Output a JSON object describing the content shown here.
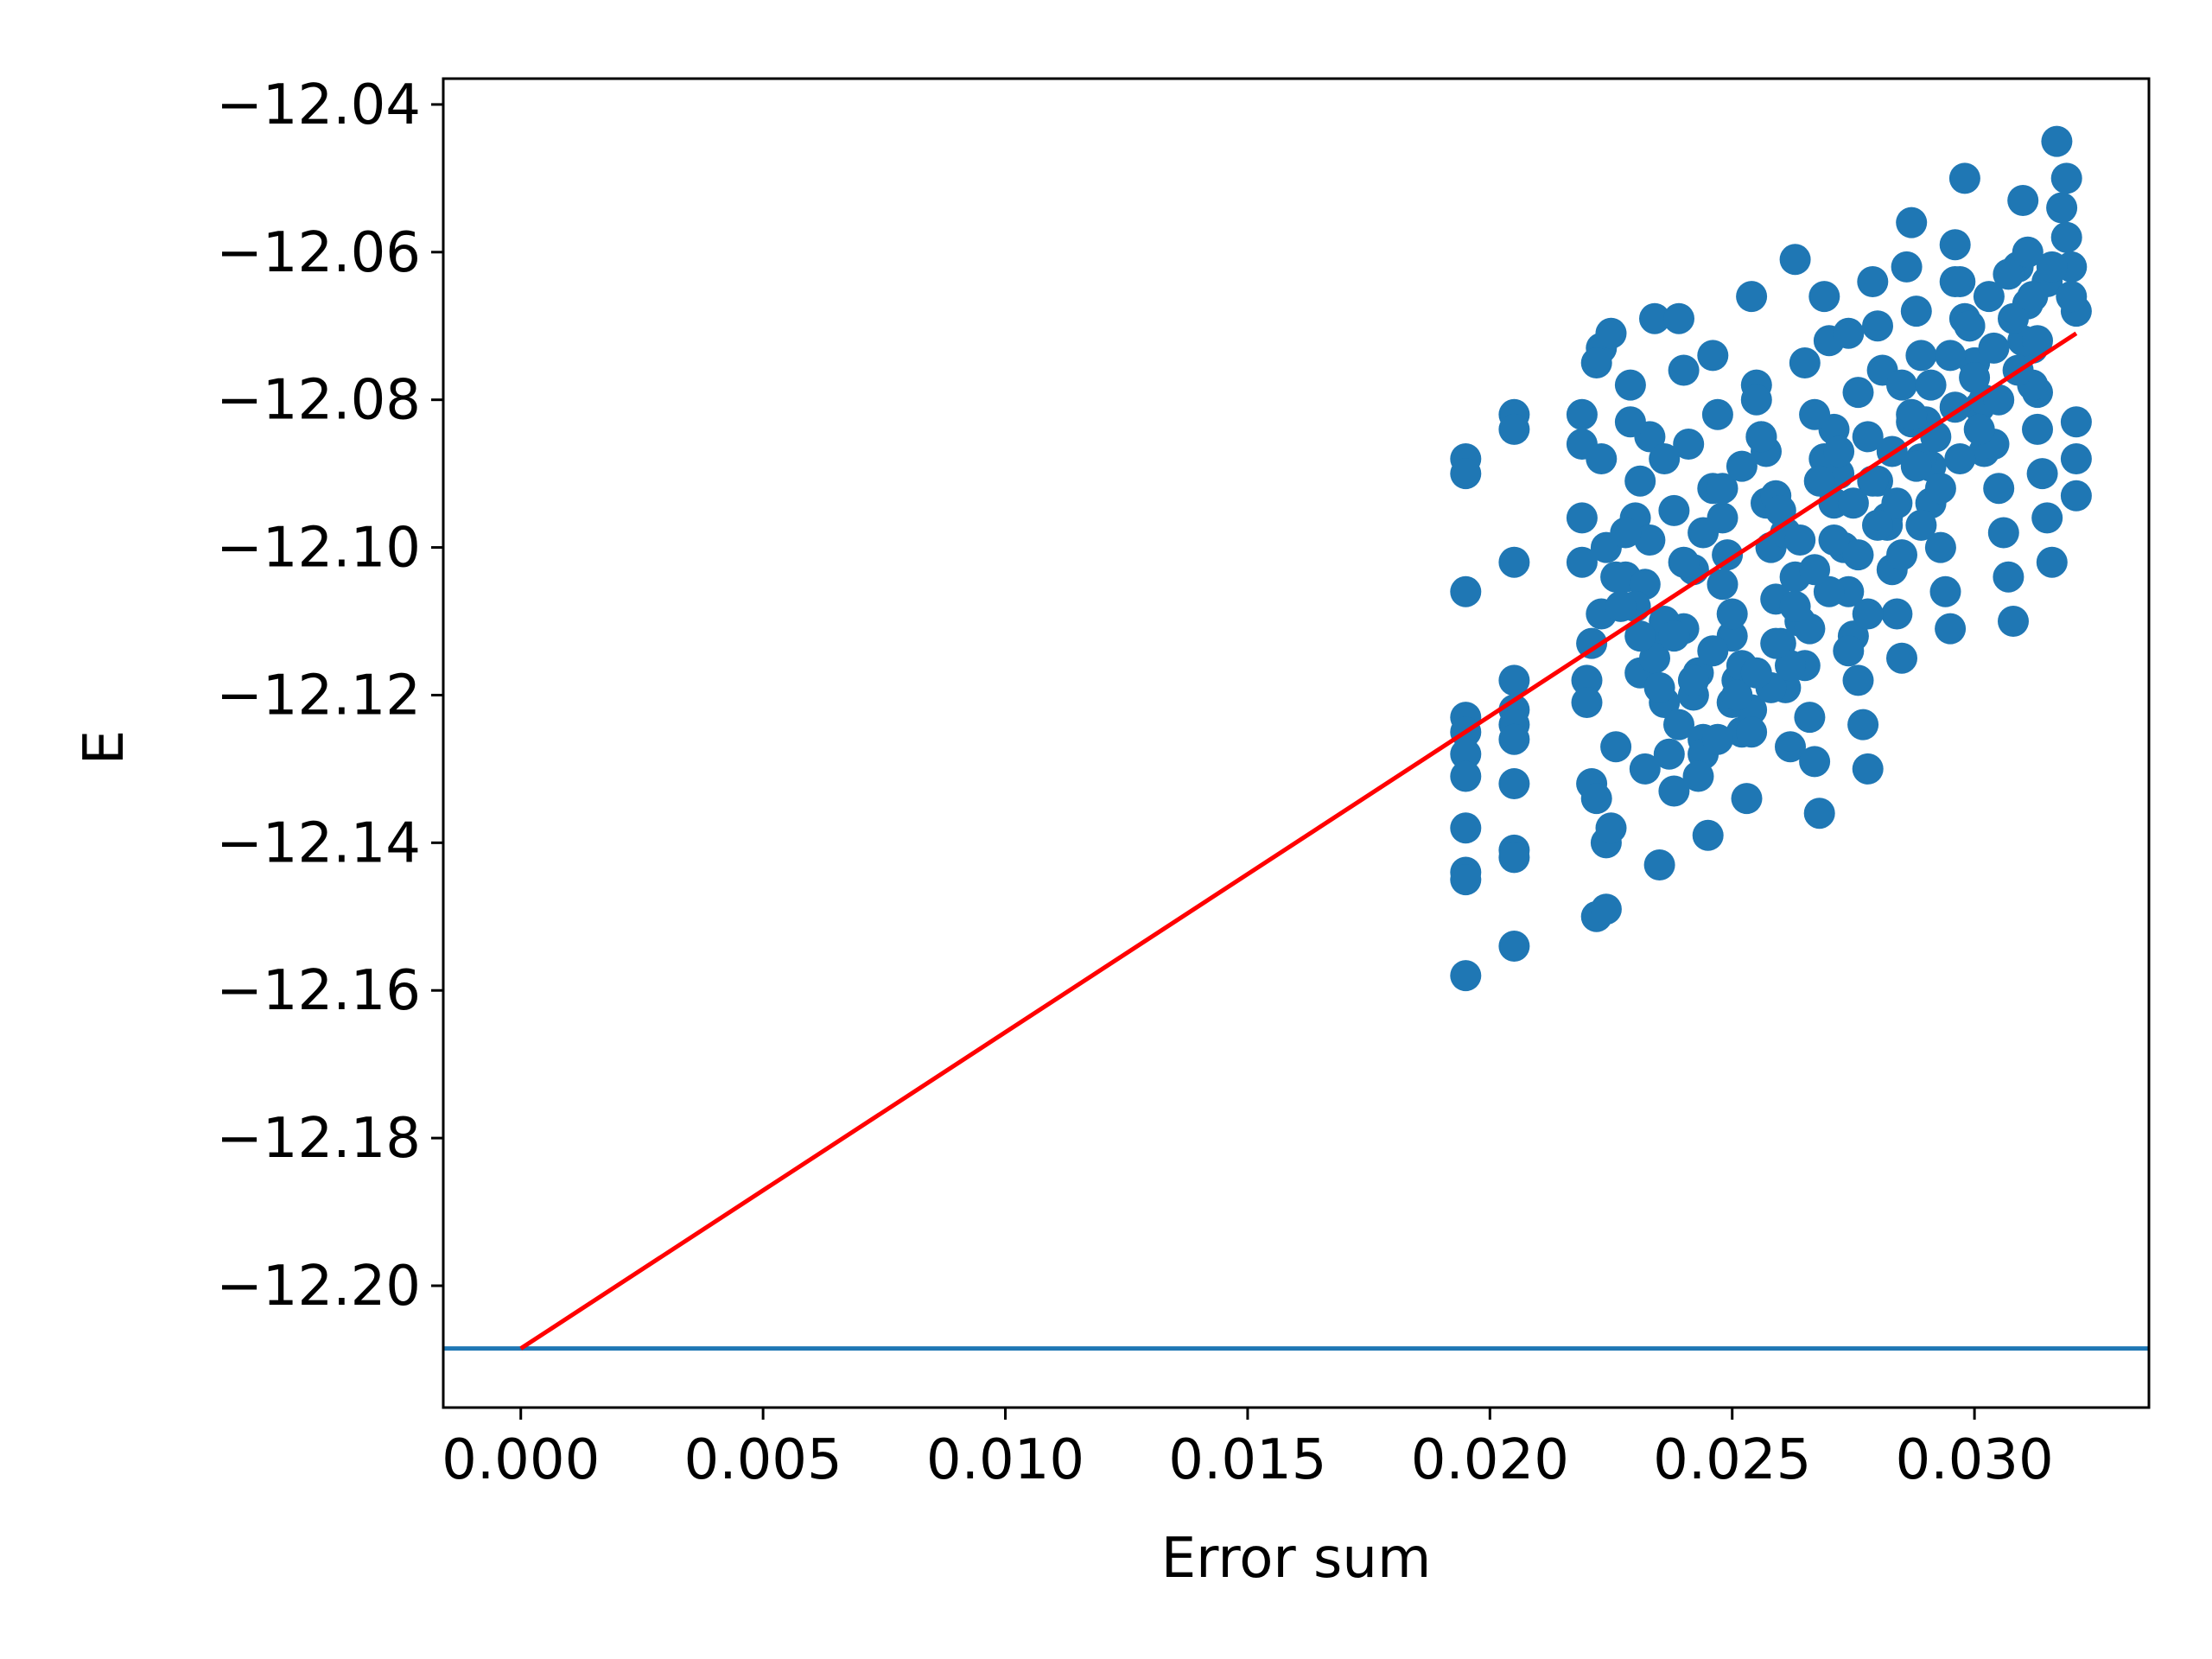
{
  "chart_data": {
    "type": "scatter",
    "title": "",
    "xlabel": "Error sum",
    "ylabel": "E",
    "xlim": [
      -0.0016,
      0.0336
    ],
    "ylim": [
      -12.2165,
      -12.0365
    ],
    "grid": false,
    "legend": "none",
    "x_ticks": [
      0.0,
      0.005,
      0.01,
      0.015,
      0.02,
      0.025,
      0.03
    ],
    "x_tick_labels": [
      "0.000",
      "0.005",
      "0.010",
      "0.015",
      "0.020",
      "0.025",
      "0.030"
    ],
    "y_ticks": [
      -12.04,
      -12.06,
      -12.08,
      -12.1,
      -12.12,
      -12.14,
      -12.16,
      -12.18,
      -12.2
    ],
    "y_tick_labels": [
      "−12.04",
      "−12.06",
      "−12.08",
      "−12.10",
      "−12.12",
      "−12.14",
      "−12.16",
      "−12.18",
      "−12.20"
    ],
    "scatter": {
      "color": "#1f77b4",
      "x": [
        0.0195,
        0.0195,
        0.0195,
        0.0195,
        0.0195,
        0.0195,
        0.0195,
        0.0195,
        0.0195,
        0.0195,
        0.0195,
        0.0205,
        0.0205,
        0.0205,
        0.0205,
        0.0205,
        0.0205,
        0.0205,
        0.0205,
        0.0205,
        0.0205,
        0.0205,
        0.0219,
        0.0219,
        0.0219,
        0.0219,
        0.022,
        0.022,
        0.0221,
        0.0222,
        0.0222,
        0.0223,
        0.0223,
        0.0224,
        0.0224,
        0.0225,
        0.0222,
        0.0223,
        0.0224,
        0.0221,
        0.0226,
        0.0225,
        0.0228,
        0.0229,
        0.023,
        0.0231,
        0.0232,
        0.0233,
        0.0234,
        0.0235,
        0.0229,
        0.0231,
        0.0233,
        0.0235,
        0.0236,
        0.0237,
        0.0238,
        0.0239,
        0.024,
        0.0241,
        0.0242,
        0.0243,
        0.0244,
        0.0245,
        0.0236,
        0.0238,
        0.024,
        0.0242,
        0.0244,
        0.0246,
        0.0247,
        0.0248,
        0.0249,
        0.025,
        0.0251,
        0.0252,
        0.0253,
        0.0254,
        0.0246,
        0.0248,
        0.025,
        0.0252,
        0.0254,
        0.0255,
        0.0256,
        0.0257,
        0.0258,
        0.0259,
        0.026,
        0.0261,
        0.0262,
        0.0263,
        0.0255,
        0.0257,
        0.0259,
        0.0261,
        0.0263,
        0.0264,
        0.0265,
        0.0266,
        0.0267,
        0.0268,
        0.0269,
        0.027,
        0.0271,
        0.0272,
        0.0265,
        0.0267,
        0.0269,
        0.0271,
        0.0273,
        0.0274,
        0.0275,
        0.0276,
        0.0277,
        0.0278,
        0.0279,
        0.028,
        0.0281,
        0.0282,
        0.0274,
        0.0276,
        0.0278,
        0.028,
        0.0282,
        0.0283,
        0.0284,
        0.0285,
        0.0286,
        0.0287,
        0.0288,
        0.0289,
        0.029,
        0.0291,
        0.0285,
        0.0287,
        0.0289,
        0.0291,
        0.0293,
        0.0294,
        0.0295,
        0.0296,
        0.0297,
        0.0298,
        0.0299,
        0.03,
        0.0301,
        0.0302,
        0.0296,
        0.0298,
        0.03,
        0.0302,
        0.0304,
        0.0305,
        0.0306,
        0.0307,
        0.0308,
        0.0309,
        0.031,
        0.0311,
        0.0312,
        0.0313,
        0.031,
        0.0312,
        0.0313,
        0.0314,
        0.0315,
        0.0316,
        0.0317,
        0.0318,
        0.0319,
        0.032,
        0.0321,
        0.0321,
        0.0321,
        0.0321,
        0.0228,
        0.0232,
        0.0236,
        0.024,
        0.0244,
        0.0248,
        0.0252,
        0.0256,
        0.026,
        0.0264,
        0.0268,
        0.0272,
        0.0276,
        0.028,
        0.0226,
        0.023,
        0.0234,
        0.0238,
        0.0242,
        0.0246,
        0.025,
        0.0254,
        0.0258,
        0.0262,
        0.0266,
        0.027,
        0.0274,
        0.0278,
        0.0227,
        0.0231,
        0.0235,
        0.0239,
        0.0243,
        0.0247,
        0.0251,
        0.0255,
        0.0259,
        0.0263,
        0.0267,
        0.0271,
        0.0275,
        0.0279,
        0.0283,
        0.0287,
        0.0291,
        0.0295,
        0.0299,
        0.0303,
        0.0307,
        0.0311,
        0.0315,
        0.0319,
        0.0284,
        0.0288,
        0.0292,
        0.0296,
        0.03,
        0.0304,
        0.0308,
        0.0312,
        0.0316,
        0.032,
        0.0285,
        0.0289,
        0.0293,
        0.0297,
        0.0301,
        0.0305,
        0.0309,
        0.0313
      ],
      "y": [
        -12.088,
        -12.09,
        -12.106,
        -12.123,
        -12.125,
        -12.128,
        -12.131,
        -12.138,
        -12.144,
        -12.145,
        -12.158,
        -12.082,
        -12.084,
        -12.102,
        -12.118,
        -12.122,
        -12.124,
        -12.126,
        -12.132,
        -12.141,
        -12.142,
        -12.154,
        -12.082,
        -12.086,
        -12.096,
        -12.102,
        -12.118,
        -12.121,
        -12.132,
        -12.134,
        -12.15,
        -12.073,
        -12.109,
        -12.14,
        -12.149,
        -12.071,
        -12.075,
        -12.088,
        -12.1,
        -12.113,
        -12.127,
        -12.138,
        -12.104,
        -12.078,
        -12.096,
        -12.117,
        -12.13,
        -12.085,
        -12.069,
        -12.143,
        -12.083,
        -12.091,
        -12.099,
        -12.112,
        -12.121,
        -12.128,
        -12.133,
        -12.069,
        -12.076,
        -12.086,
        -12.103,
        -12.117,
        -12.126,
        -12.139,
        -12.088,
        -12.095,
        -12.111,
        -12.12,
        -12.128,
        -12.074,
        -12.082,
        -12.096,
        -12.101,
        -12.112,
        -12.118,
        -12.125,
        -12.134,
        -12.066,
        -12.092,
        -12.105,
        -12.109,
        -12.116,
        -12.122,
        -12.078,
        -12.085,
        -12.094,
        -12.1,
        -12.107,
        -12.113,
        -12.119,
        -12.127,
        -12.061,
        -12.08,
        -12.087,
        -12.093,
        -12.098,
        -12.104,
        -12.11,
        -12.116,
        -12.123,
        -12.129,
        -12.136,
        -12.066,
        -12.072,
        -12.084,
        -12.09,
        -12.075,
        -12.082,
        -12.088,
        -12.094,
        -12.1,
        -12.106,
        -12.112,
        -12.118,
        -12.124,
        -12.13,
        -12.064,
        -12.07,
        -12.076,
        -12.096,
        -12.071,
        -12.079,
        -12.085,
        -12.091,
        -12.097,
        -12.103,
        -12.109,
        -12.115,
        -12.062,
        -12.056,
        -12.068,
        -12.074,
        -12.083,
        -12.089,
        -12.078,
        -12.083,
        -12.088,
        -12.094,
        -12.1,
        -12.106,
        -12.111,
        -12.059,
        -12.064,
        -12.05,
        -12.07,
        -12.075,
        -12.081,
        -12.087,
        -12.064,
        -12.069,
        -12.075,
        -12.08,
        -12.086,
        -12.092,
        -12.098,
        -12.104,
        -12.11,
        -12.062,
        -12.053,
        -12.067,
        -12.073,
        -12.079,
        -12.072,
        -12.078,
        -12.084,
        -12.09,
        -12.096,
        -12.102,
        -12.045,
        -12.054,
        -12.05,
        -12.062,
        -12.068,
        -12.083,
        -12.088,
        -12.093,
        -12.098,
        -12.105,
        -12.11,
        -12.102,
        -12.098,
        -12.092,
        -12.089,
        -12.085,
        -12.095,
        -12.099,
        -12.091,
        -12.087,
        -12.101,
        -12.097,
        -12.104,
        -12.108,
        -12.115,
        -12.112,
        -12.118,
        -12.114,
        -12.121,
        -12.125,
        -12.119,
        -12.116,
        -12.111,
        -12.106,
        -12.114,
        -12.109,
        -12.108,
        -12.112,
        -12.119,
        -12.124,
        -12.131,
        -12.126,
        -12.12,
        -12.117,
        -12.113,
        -12.108,
        -12.103,
        -12.099,
        -12.094,
        -12.091,
        -12.087,
        -12.082,
        -12.078,
        -12.074,
        -12.07,
        -12.066,
        -12.063,
        -12.06,
        -12.064,
        -12.058,
        -12.094,
        -12.089,
        -12.085,
        -12.081,
        -12.077,
        -12.073,
        -12.069,
        -12.066,
        -12.062,
        -12.066,
        -12.101,
        -12.097,
        -12.092,
        -12.088,
        -12.084,
        -12.08,
        -12.076,
        -12.072
      ]
    },
    "fit_line": {
      "color": "#ff0000",
      "x": [
        0.0,
        0.0321
      ],
      "y": [
        -12.2085,
        -12.071
      ]
    },
    "hline": {
      "color": "#1f77b4",
      "y": -12.2085
    }
  }
}
